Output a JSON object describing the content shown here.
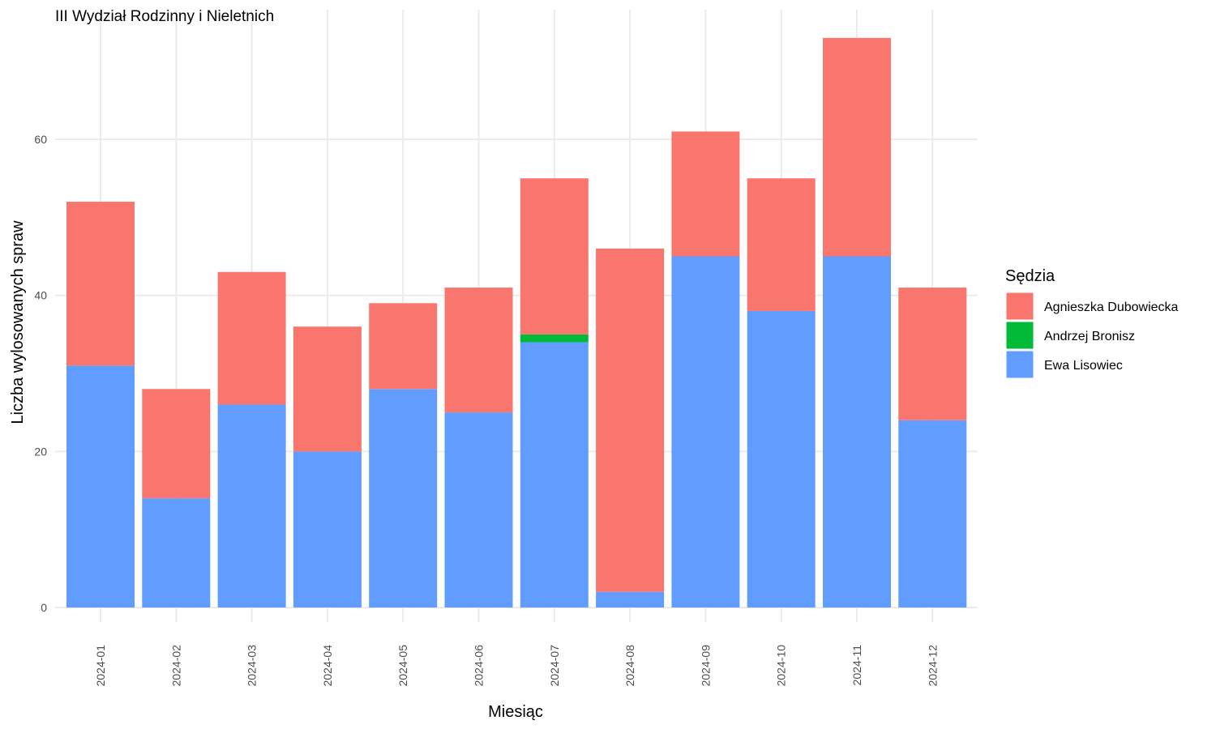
{
  "chart_data": {
    "type": "bar",
    "stacked": true,
    "title": "III Wydział Rodzinny i Nieletnich",
    "xlabel": "Miesiąc",
    "ylabel": "Liczba wylosowanych spraw",
    "ylim": [
      0,
      76
    ],
    "yticks": [
      0,
      20,
      40,
      60
    ],
    "grid": true,
    "legend_title": "Sędzia",
    "legend_position": "right",
    "categories": [
      "2024-01",
      "2024-02",
      "2024-03",
      "2024-04",
      "2024-05",
      "2024-06",
      "2024-07",
      "2024-08",
      "2024-09",
      "2024-10",
      "2024-11",
      "2024-12"
    ],
    "series": [
      {
        "name": "Agnieszka Dubowiecka",
        "color": "#F8766D",
        "values": [
          21,
          14,
          17,
          16,
          11,
          16,
          20,
          44,
          16,
          17,
          28,
          17
        ]
      },
      {
        "name": "Andrzej Bronisz",
        "color": "#00BA38",
        "values": [
          0,
          0,
          0,
          0,
          0,
          0,
          1,
          0,
          0,
          0,
          0,
          0
        ]
      },
      {
        "name": "Ewa Lisowiec",
        "color": "#619CFF",
        "values": [
          31,
          14,
          26,
          20,
          28,
          25,
          34,
          2,
          45,
          38,
          45,
          24
        ]
      }
    ]
  }
}
